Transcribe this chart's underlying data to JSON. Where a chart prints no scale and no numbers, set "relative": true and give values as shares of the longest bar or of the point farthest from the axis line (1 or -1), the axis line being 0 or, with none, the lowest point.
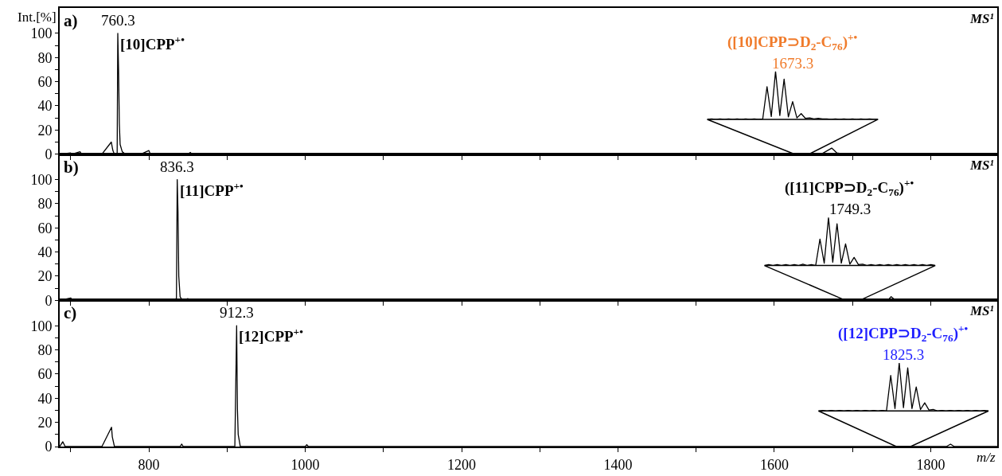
{
  "chart_data": [
    {
      "type": "line",
      "ylabel": "Int.[%]",
      "annotations": [
        "a)",
        "MS¹",
        {
          "text": "760.3",
          "x": 760.3,
          "y": 100
        },
        {
          "text": "[10]CPP$^{+•}$",
          "x": 760.3,
          "y": 100
        }
      ],
      "x": [
        686,
        700,
        702,
        712,
        714,
        740,
        752,
        754,
        756,
        759.5,
        760.3,
        761.3,
        762.3,
        763.3,
        766,
        770,
        790,
        800,
        802,
        850,
        853,
        855,
        1000,
        1660,
        1673.3,
        1680,
        1690,
        1885
      ],
      "series": [
        {
          "color": "#000000",
          "values": [
            0,
            1,
            0,
            2,
            0,
            0,
            10,
            3,
            0,
            0,
            100,
            70,
            25,
            8,
            2,
            0,
            0,
            3,
            0,
            0,
            1.5,
            0,
            0,
            0,
            5,
            1,
            0,
            0
          ]
        }
      ],
      "xlim": [
        686,
        1885
      ],
      "xticks": [
        {
          "value": 700,
          "label": null
        },
        {
          "value": 800,
          "label": null
        },
        {
          "value": 900,
          "label": null
        },
        {
          "value": 1000,
          "label": null
        },
        {
          "value": 1100,
          "label": null
        },
        {
          "value": 1200,
          "label": null
        },
        {
          "value": 1300,
          "label": null
        },
        {
          "value": 1400,
          "label": null
        },
        {
          "value": 1500,
          "label": null
        },
        {
          "value": 1600,
          "label": null
        },
        {
          "value": 1700,
          "label": null
        },
        {
          "value": 1800,
          "label": null
        }
      ],
      "ylim": [
        0,
        121
      ],
      "yticks": [
        0,
        {
          "value": 10,
          "label": null
        },
        20,
        {
          "value": 30,
          "label": null
        },
        40,
        {
          "value": 50,
          "label": null
        },
        60,
        {
          "value": 70,
          "label": null
        },
        80,
        {
          "value": 90,
          "label": null
        },
        100
      ],
      "tick_labels": "y",
      "grid": false
    },
    {
      "type": "line",
      "relative": true,
      "tick_labels": false,
      "annotations": [
        "([10]CPP⊃D$_{2}$-C$_{76}$)$^{+•}$",
        "1673.3"
      ],
      "categories": [
        null,
        null,
        null,
        null,
        null,
        null,
        null,
        null,
        null,
        null,
        null,
        null,
        null,
        null,
        null,
        null,
        null,
        null,
        null,
        null,
        null,
        null,
        null,
        null,
        null,
        null,
        null,
        null,
        null,
        null,
        null,
        null,
        null,
        null,
        null,
        null,
        null,
        null,
        null,
        null,
        null
      ],
      "series": [
        {
          "color": "#000000",
          "values": [
            0,
            0.01,
            0,
            0.01,
            0,
            0.01,
            0,
            0.01,
            0,
            0.01,
            0,
            0.01,
            0,
            0.01,
            0.68,
            0.06,
            1,
            0.08,
            0.84,
            0.05,
            0.37,
            0.03,
            0.12,
            0.02,
            0.03,
            0.01,
            0.02,
            0.01,
            0.01,
            0,
            0.01,
            0,
            0.01,
            0,
            0.01,
            0,
            0.01,
            0,
            0.01,
            0,
            0
          ]
        }
      ]
    },
    {
      "type": "line",
      "annotations": [
        "b)",
        "MS¹",
        {
          "text": "836.3",
          "x": 836.3,
          "y": 100
        },
        {
          "text": "[11]CPP$^{+•}$",
          "x": 836.3,
          "y": 100
        }
      ],
      "x": [
        686,
        700,
        703,
        760,
        762,
        834,
        835.3,
        836.3,
        837.3,
        838.3,
        840,
        843,
        850,
        852,
        1150,
        1152,
        1154,
        1745,
        1749.3,
        1755,
        1885
      ],
      "series": [
        {
          "color": "#000000",
          "values": [
            0,
            2,
            0,
            1,
            0,
            0,
            2,
            100,
            73,
            20,
            3,
            0,
            1.5,
            0,
            0,
            1,
            0,
            0,
            3,
            0,
            0
          ]
        }
      ],
      "xlim": [
        686,
        1885
      ],
      "xticks": [
        {
          "value": 700,
          "label": null
        },
        {
          "value": 800,
          "label": null
        },
        {
          "value": 900,
          "label": null
        },
        {
          "value": 1000,
          "label": null
        },
        {
          "value": 1100,
          "label": null
        },
        {
          "value": 1200,
          "label": null
        },
        {
          "value": 1300,
          "label": null
        },
        {
          "value": 1400,
          "label": null
        },
        {
          "value": 1500,
          "label": null
        },
        {
          "value": 1600,
          "label": null
        },
        {
          "value": 1700,
          "label": null
        },
        {
          "value": 1800,
          "label": null
        }
      ],
      "ylim": [
        0,
        121
      ],
      "yticks": [
        0,
        {
          "value": 10,
          "label": null
        },
        20,
        {
          "value": 30,
          "label": null
        },
        40,
        {
          "value": 50,
          "label": null
        },
        60,
        {
          "value": 70,
          "label": null
        },
        80,
        {
          "value": 90,
          "label": null
        },
        100
      ],
      "tick_labels": "y",
      "grid": false
    },
    {
      "type": "line",
      "relative": true,
      "tick_labels": false,
      "annotations": [
        "([11]CPP⊃D$_{2}$-C$_{76}$)$^{+•}$",
        "1749.3"
      ],
      "categories": [
        null,
        null,
        null,
        null,
        null,
        null,
        null,
        null,
        null,
        null,
        null,
        null,
        null,
        null,
        null,
        null,
        null,
        null,
        null,
        null,
        null,
        null,
        null,
        null,
        null,
        null,
        null,
        null,
        null,
        null,
        null,
        null,
        null,
        null,
        null,
        null,
        null,
        null,
        null,
        null,
        null
      ],
      "series": [
        {
          "color": "#000000",
          "values": [
            0,
            0.02,
            0,
            0.02,
            0,
            0.02,
            0,
            0.02,
            0,
            0.03,
            0,
            0.02,
            0,
            0.55,
            0.05,
            1,
            0.07,
            0.87,
            0.05,
            0.45,
            0.03,
            0.17,
            0.02,
            0.03,
            0,
            0.02,
            0,
            0.02,
            0,
            0.02,
            0,
            0.02,
            0,
            0.02,
            0,
            0.02,
            0,
            0.02,
            0,
            0.02,
            0
          ]
        }
      ]
    },
    {
      "type": "line",
      "xlabel": "m/z",
      "annotations": [
        "c)",
        "MS¹",
        {
          "text": "912.3",
          "x": 912.3,
          "y": 100
        },
        {
          "text": "[12]CPP$^{+•}$",
          "x": 912.3,
          "y": 100
        }
      ],
      "x": [
        686,
        690,
        693,
        740,
        752.3,
        753.3,
        756,
        840,
        842,
        844,
        910,
        912.3,
        913.3,
        914.3,
        917,
        1000,
        1002,
        1004,
        1820,
        1825.3,
        1830,
        1885
      ],
      "series": [
        {
          "color": "#000000",
          "values": [
            0,
            4,
            0,
            0,
            16,
            8,
            0,
            0,
            2,
            0,
            0,
            100,
            31,
            10,
            0,
            0,
            1.5,
            0,
            0,
            2,
            0,
            0
          ]
        }
      ],
      "xlim": [
        686,
        1885
      ],
      "xticks": [
        {
          "value": 700,
          "label": null
        },
        {
          "value": 800,
          "label": "800"
        },
        {
          "value": 900,
          "label": null
        },
        {
          "value": 1000,
          "label": "1000"
        },
        {
          "value": 1100,
          "label": null
        },
        {
          "value": 1200,
          "label": "1200"
        },
        {
          "value": 1300,
          "label": null
        },
        {
          "value": 1400,
          "label": "1400"
        },
        {
          "value": 1500,
          "label": null
        },
        {
          "value": 1600,
          "label": "1600"
        },
        {
          "value": 1700,
          "label": null
        },
        {
          "value": 1800,
          "label": "1800"
        }
      ],
      "ylim": [
        0,
        121
      ],
      "yticks": [
        0,
        {
          "value": 10,
          "label": null
        },
        20,
        {
          "value": 30,
          "label": null
        },
        40,
        {
          "value": 50,
          "label": null
        },
        60,
        {
          "value": 70,
          "label": null
        },
        80,
        {
          "value": 90,
          "label": null
        },
        100
      ],
      "grid": false
    },
    {
      "type": "line",
      "relative": true,
      "tick_labels": false,
      "annotations": [
        "([12]CPP⊃D$_{2}$-C$_{76}$)$^{+•}$",
        "1825.3"
      ],
      "categories": [
        null,
        null,
        null,
        null,
        null,
        null,
        null,
        null,
        null,
        null,
        null,
        null,
        null,
        null,
        null,
        null,
        null,
        null,
        null,
        null,
        null,
        null,
        null,
        null,
        null,
        null,
        null,
        null,
        null,
        null,
        null,
        null,
        null,
        null,
        null,
        null,
        null,
        null,
        null,
        null,
        null
      ],
      "series": [
        {
          "color": "#000000",
          "values": [
            0,
            0.01,
            0,
            0.01,
            0,
            0.01,
            0,
            0.01,
            0,
            0.01,
            0,
            0.01,
            0,
            0.01,
            0,
            0.01,
            0,
            0.74,
            0.05,
            1,
            0.07,
            0.9,
            0.05,
            0.5,
            0.03,
            0.17,
            0.02,
            0.03,
            0,
            0.01,
            0,
            0.01,
            0,
            0.01,
            0,
            0.01,
            0,
            0.01,
            0,
            0.01,
            0
          ]
        }
      ]
    }
  ]
}
